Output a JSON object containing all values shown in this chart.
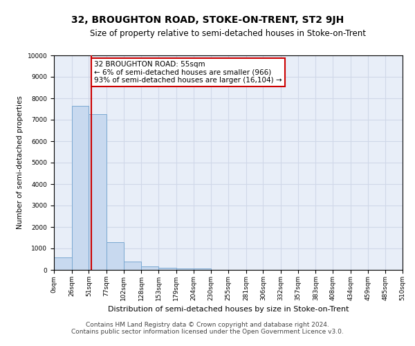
{
  "title": "32, BROUGHTON ROAD, STOKE-ON-TRENT, ST2 9JH",
  "subtitle": "Size of property relative to semi-detached houses in Stoke-on-Trent",
  "xlabel": "Distribution of semi-detached houses by size in Stoke-on-Trent",
  "ylabel": "Number of semi-detached properties",
  "bin_edges": [
    0,
    26,
    51,
    77,
    102,
    128,
    153,
    179,
    204,
    230,
    255,
    281,
    306,
    332,
    357,
    383,
    408,
    434,
    459,
    485,
    510
  ],
  "bar_heights": [
    580,
    7650,
    7250,
    1300,
    400,
    150,
    110,
    80,
    60,
    0,
    0,
    0,
    0,
    0,
    0,
    0,
    0,
    0,
    0,
    0
  ],
  "bar_color": "#c8d9ef",
  "bar_edge_color": "#7aa8d1",
  "grid_color": "#d0d8e8",
  "background_color": "#e8eef8",
  "property_size": 55,
  "redline_color": "#cc0000",
  "annotation_text": "32 BROUGHTON ROAD: 55sqm\n← 6% of semi-detached houses are smaller (966)\n93% of semi-detached houses are larger (16,104) →",
  "annotation_box_color": "#ffffff",
  "annotation_box_edge": "#cc0000",
  "ylim": [
    0,
    10000
  ],
  "yticks": [
    0,
    1000,
    2000,
    3000,
    4000,
    5000,
    6000,
    7000,
    8000,
    9000,
    10000
  ],
  "tick_labels": [
    "0sqm",
    "26sqm",
    "51sqm",
    "77sqm",
    "102sqm",
    "128sqm",
    "153sqm",
    "179sqm",
    "204sqm",
    "230sqm",
    "255sqm",
    "281sqm",
    "306sqm",
    "332sqm",
    "357sqm",
    "383sqm",
    "408sqm",
    "434sqm",
    "459sqm",
    "485sqm",
    "510sqm"
  ],
  "footer1": "Contains HM Land Registry data © Crown copyright and database right 2024.",
  "footer2": "Contains public sector information licensed under the Open Government Licence v3.0.",
  "title_fontsize": 10,
  "subtitle_fontsize": 8.5,
  "xlabel_fontsize": 8,
  "ylabel_fontsize": 7.5,
  "tick_fontsize": 6.5,
  "footer_fontsize": 6.5,
  "annot_fontsize": 7.5
}
